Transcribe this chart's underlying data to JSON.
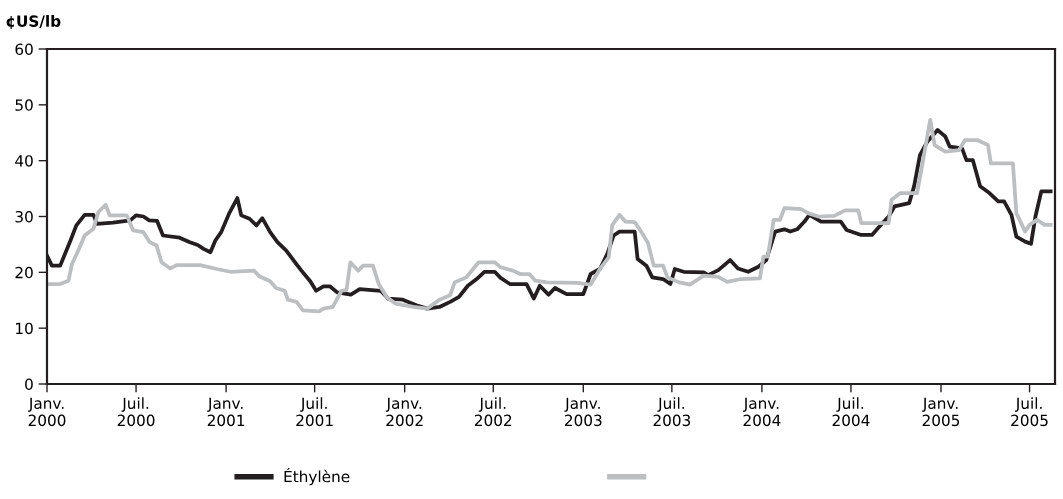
{
  "chart_data": {
    "type": "line",
    "ylabel": "¢US/lb",
    "ylim": [
      0,
      60
    ],
    "yticks": [
      0,
      10,
      20,
      30,
      40,
      50,
      60
    ],
    "xlim": [
      "2000-01-01",
      "2005-08-22"
    ],
    "xticks": [
      {
        "value": "2000-01-01",
        "label": "Janv.\n2000"
      },
      {
        "value": "2000-07-01",
        "label": "Juil.\n2000"
      },
      {
        "value": "2001-01-01",
        "label": "Janv.\n2001"
      },
      {
        "value": "2001-07-01",
        "label": "Juil.\n2001"
      },
      {
        "value": "2002-01-01",
        "label": "Janv.\n2002"
      },
      {
        "value": "2002-07-01",
        "label": "Juil.\n2002"
      },
      {
        "value": "2003-01-01",
        "label": "Janv.\n2003"
      },
      {
        "value": "2003-07-01",
        "label": "Juil.\n2003"
      },
      {
        "value": "2004-01-01",
        "label": "Janv.\n2004"
      },
      {
        "value": "2004-07-01",
        "label": "Juil.\n2004"
      },
      {
        "value": "2005-01-01",
        "label": "Janv.\n2005"
      },
      {
        "value": "2005-07-01",
        "label": "Juil.\n2005"
      }
    ],
    "grid": false,
    "legend": "bottom",
    "marker": "none",
    "line_style": "solid",
    "series": [
      {
        "name": "Éthylène",
        "color": "#231f20",
        "x": [
          "2000-01-01",
          "2000-01-11",
          "2000-01-28",
          "2000-02-04",
          "2000-02-18",
          "2000-03-01",
          "2000-03-18",
          "2000-04-05",
          "2000-04-12",
          "2000-05-15",
          "2000-06-19",
          "2000-07-01",
          "2000-07-16",
          "2000-07-28",
          "2000-08-13",
          "2000-08-25",
          "2000-09-28",
          "2000-10-19",
          "2000-11-04",
          "2000-11-16",
          "2000-11-30",
          "2000-12-10",
          "2000-12-22",
          "2001-01-07",
          "2001-01-24",
          "2001-02-01",
          "2001-02-18",
          "2001-03-04",
          "2001-03-16",
          "2001-04-01",
          "2001-04-16",
          "2001-05-04",
          "2001-05-22",
          "2001-06-04",
          "2001-06-22",
          "2001-07-04",
          "2001-07-19",
          "2001-08-01",
          "2001-08-16",
          "2001-09-13",
          "2001-10-01",
          "2001-11-13",
          "2001-11-28",
          "2001-12-28",
          "2002-01-25",
          "2002-02-16",
          "2002-03-13",
          "2002-04-04",
          "2002-04-22",
          "2002-05-10",
          "2002-05-28",
          "2002-06-13",
          "2002-07-04",
          "2002-07-16",
          "2002-08-04",
          "2002-09-07",
          "2002-09-22",
          "2002-10-04",
          "2002-10-22",
          "2002-11-04",
          "2002-11-28",
          "2003-01-01",
          "2003-01-16",
          "2003-02-04",
          "2003-02-19",
          "2003-03-04",
          "2003-03-16",
          "2003-04-16",
          "2003-04-22",
          "2003-05-10",
          "2003-05-22",
          "2003-06-13",
          "2003-06-28",
          "2003-07-07",
          "2003-07-25",
          "2003-09-04",
          "2003-09-13",
          "2003-10-04",
          "2003-10-28",
          "2003-11-13",
          "2003-12-04",
          "2003-12-25",
          "2004-01-10",
          "2004-01-28",
          "2004-02-16",
          "2004-02-28",
          "2004-03-13",
          "2004-03-28",
          "2004-04-07",
          "2004-05-01",
          "2004-06-10",
          "2004-06-22",
          "2004-07-22",
          "2004-08-13",
          "2004-08-25",
          "2004-09-16",
          "2004-09-28",
          "2004-10-28",
          "2004-11-07",
          "2004-11-19",
          "2004-12-04",
          "2004-12-25",
          "2005-01-10",
          "2005-01-19",
          "2005-02-13",
          "2005-02-22",
          "2005-03-07",
          "2005-03-22",
          "2005-04-10",
          "2005-04-28",
          "2005-05-10",
          "2005-05-25",
          "2005-06-04",
          "2005-06-22",
          "2005-07-04",
          "2005-07-13",
          "2005-07-25",
          "2005-08-13"
        ],
        "values": [
          23.0,
          21.2,
          21.2,
          22.7,
          25.7,
          28.4,
          30.3,
          30.3,
          28.7,
          28.9,
          29.3,
          30.2,
          30.0,
          29.3,
          29.2,
          26.6,
          26.2,
          25.4,
          24.9,
          24.2,
          23.6,
          25.7,
          27.2,
          30.5,
          33.3,
          30.2,
          29.6,
          28.4,
          29.7,
          27.2,
          25.4,
          23.9,
          21.8,
          20.3,
          18.4,
          16.7,
          17.5,
          17.5,
          16.4,
          16.0,
          17.0,
          16.7,
          15.3,
          15.1,
          14.1,
          13.5,
          13.8,
          14.7,
          15.6,
          17.6,
          18.8,
          20.1,
          20.1,
          19.0,
          17.9,
          17.9,
          15.3,
          17.6,
          16.0,
          17.2,
          16.1,
          16.1,
          19.7,
          20.6,
          23.3,
          26.6,
          27.3,
          27.3,
          22.4,
          21.2,
          19.1,
          18.8,
          17.9,
          20.6,
          20.1,
          20.0,
          19.5,
          20.4,
          22.2,
          20.7,
          20.1,
          21.0,
          22.2,
          27.3,
          27.7,
          27.3,
          27.7,
          29.1,
          30.3,
          29.1,
          29.1,
          27.6,
          26.7,
          26.7,
          27.9,
          30.0,
          31.8,
          32.4,
          35.4,
          41.0,
          43.4,
          45.5,
          44.3,
          42.5,
          42.2,
          40.1,
          40.1,
          35.4,
          34.2,
          32.7,
          32.7,
          30.3,
          26.4,
          25.5,
          25.1,
          30.0,
          34.5,
          34.5
        ]
      },
      {
        "color": "#bcbec0",
        "x": [
          "2000-01-01",
          "2000-01-28",
          "2000-02-14",
          "2000-02-21",
          "2000-03-05",
          "2000-03-18",
          "2000-04-05",
          "2000-04-15",
          "2000-04-30",
          "2000-05-08",
          "2000-06-12",
          "2000-06-25",
          "2000-07-16",
          "2000-07-29",
          "2000-08-12",
          "2000-08-22",
          "2000-09-09",
          "2000-09-22",
          "2000-11-09",
          "2000-12-13",
          "2001-01-10",
          "2001-02-27",
          "2001-03-10",
          "2001-04-01",
          "2001-04-13",
          "2001-05-01",
          "2001-05-07",
          "2001-05-25",
          "2001-06-07",
          "2001-07-10",
          "2001-07-19",
          "2001-08-07",
          "2001-08-25",
          "2001-09-04",
          "2001-09-12",
          "2001-09-28",
          "2001-10-08",
          "2001-10-28",
          "2001-11-09",
          "2001-11-25",
          "2001-12-13",
          "2002-01-19",
          "2002-02-16",
          "2002-03-13",
          "2002-04-04",
          "2002-04-13",
          "2002-05-07",
          "2002-06-01",
          "2002-07-04",
          "2002-07-16",
          "2002-08-10",
          "2002-08-25",
          "2002-09-13",
          "2002-09-25",
          "2002-10-19",
          "2002-12-19",
          "2003-01-16",
          "2003-02-04",
          "2003-02-22",
          "2003-03-01",
          "2003-03-16",
          "2003-03-28",
          "2003-04-16",
          "2003-04-25",
          "2003-05-13",
          "2003-05-25",
          "2003-06-13",
          "2003-06-22",
          "2003-07-16",
          "2003-08-07",
          "2003-09-04",
          "2003-10-04",
          "2003-10-22",
          "2003-11-19",
          "2003-12-28",
          "2004-01-04",
          "2004-01-13",
          "2004-01-25",
          "2004-02-07",
          "2004-02-16",
          "2004-03-22",
          "2004-04-04",
          "2004-04-25",
          "2004-05-28",
          "2004-06-19",
          "2004-07-16",
          "2004-07-22",
          "2004-09-16",
          "2004-09-22",
          "2004-10-10",
          "2004-11-13",
          "2004-11-22",
          "2004-12-10",
          "2004-12-19",
          "2005-01-10",
          "2005-02-07",
          "2005-02-19",
          "2005-03-16",
          "2005-04-07",
          "2005-04-13",
          "2005-05-28",
          "2005-06-04",
          "2005-06-22",
          "2005-07-01",
          "2005-07-16",
          "2005-08-01",
          "2005-08-13"
        ],
        "values": [
          17.9,
          17.9,
          18.5,
          21.5,
          23.9,
          26.6,
          27.8,
          30.8,
          32.1,
          30.2,
          30.2,
          27.5,
          27.2,
          25.4,
          24.8,
          21.8,
          20.7,
          21.3,
          21.3,
          20.6,
          20.1,
          20.3,
          19.3,
          18.4,
          17.2,
          16.7,
          15.1,
          14.7,
          13.2,
          13.0,
          13.5,
          13.8,
          16.7,
          16.8,
          21.8,
          20.3,
          21.2,
          21.2,
          17.9,
          15.6,
          14.4,
          13.8,
          13.5,
          15.1,
          15.9,
          18.2,
          19.1,
          21.8,
          21.8,
          20.9,
          20.3,
          19.7,
          19.7,
          18.5,
          18.2,
          18.1,
          17.8,
          20.6,
          22.7,
          28.4,
          30.3,
          29.1,
          29.0,
          27.9,
          25.3,
          21.2,
          21.2,
          19.1,
          18.2,
          17.8,
          19.4,
          19.2,
          18.3,
          18.8,
          18.9,
          22.8,
          22.8,
          29.4,
          29.4,
          31.5,
          31.3,
          30.6,
          30.0,
          30.1,
          31.1,
          31.1,
          28.8,
          28.8,
          33.0,
          34.2,
          34.2,
          38.4,
          47.3,
          42.8,
          41.6,
          41.9,
          43.7,
          43.7,
          42.8,
          39.5,
          39.5,
          30.6,
          27.3,
          28.5,
          29.4,
          28.5,
          28.5
        ]
      }
    ]
  }
}
